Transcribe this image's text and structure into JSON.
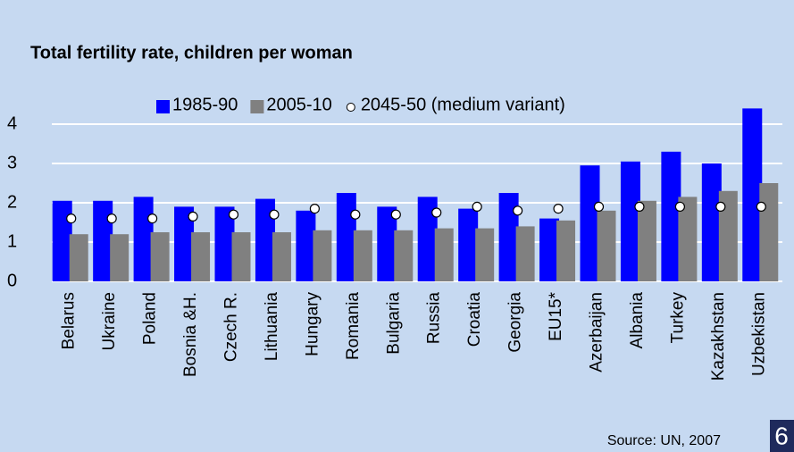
{
  "chart_data": {
    "type": "bar",
    "title": "Total fertility rate, children per woman",
    "source": "Source: UN, 2007",
    "page_number": "6",
    "categories": [
      "Belarus",
      "Ukraine",
      "Poland",
      "Bosnia &H.",
      "Czech R.",
      "Lithuania",
      "Hungary",
      "Romania",
      "Bulgaria",
      "Russia",
      "Croatia",
      "Georgia",
      "EU15*",
      "Azerbaijan",
      "Albania",
      "Turkey",
      "Kazakhstan",
      "Uzbekistan"
    ],
    "series": [
      {
        "name": "1985-90",
        "color": "#0000ff",
        "values": [
          2.05,
          2.05,
          2.15,
          1.9,
          1.9,
          2.1,
          1.8,
          2.25,
          1.9,
          2.15,
          1.85,
          2.25,
          1.6,
          2.95,
          3.05,
          3.3,
          3.0,
          4.4
        ]
      },
      {
        "name": "2005-10",
        "color": "#808080",
        "values": [
          1.2,
          1.2,
          1.25,
          1.25,
          1.25,
          1.25,
          1.3,
          1.3,
          1.3,
          1.35,
          1.35,
          1.4,
          1.55,
          1.8,
          2.05,
          2.15,
          2.3,
          2.5
        ]
      },
      {
        "name": "2045-50 (medium variant)",
        "color": "#ffffff",
        "marker": "circle",
        "values": [
          1.6,
          1.6,
          1.6,
          1.65,
          1.7,
          1.7,
          1.85,
          1.7,
          1.7,
          1.75,
          1.9,
          1.8,
          1.85,
          1.9,
          1.9,
          1.9,
          1.9,
          1.9
        ]
      }
    ],
    "ylim": [
      0,
      4.5
    ],
    "yticks": [
      0,
      1,
      2,
      3,
      4
    ],
    "grid": true
  }
}
